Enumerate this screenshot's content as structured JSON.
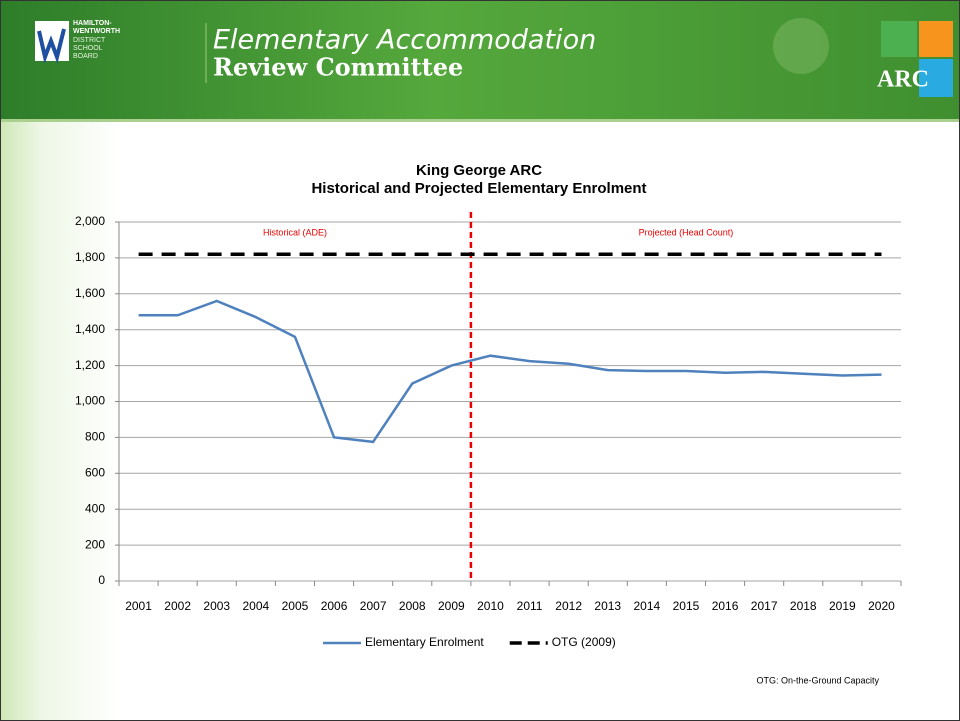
{
  "header": {
    "logo_lines": [
      "HAMILTON-",
      "WENTWORTH",
      "DISTRICT",
      "SCHOOL",
      "BOARD"
    ],
    "title_line1": "Elementary Accommodation",
    "title_line2": "Review Committee",
    "badge": "ARC"
  },
  "chart_data": {
    "type": "line",
    "title": [
      "King George ARC",
      "Historical and Projected Elementary Enrolment"
    ],
    "annotations": [
      "Historical (ADE)",
      "Projected (Head Count)"
    ],
    "categories": [
      "2001",
      "2002",
      "2003",
      "2004",
      "2005",
      "2006",
      "2007",
      "2008",
      "2009",
      "2010",
      "2011",
      "2012",
      "2013",
      "2014",
      "2015",
      "2016",
      "2017",
      "2018",
      "2019",
      "2020"
    ],
    "series": [
      {
        "name": "Elementary Enrolment",
        "color": "#4f81bd",
        "line_style": "solid",
        "values": [
          1480,
          1480,
          1560,
          1470,
          1360,
          800,
          775,
          1100,
          1200,
          1255,
          1225,
          1210,
          1175,
          1170,
          1170,
          1160,
          1165,
          1155,
          1145,
          1150
        ]
      },
      {
        "name": "OTG (2009)",
        "color": "#000000",
        "line_style": "dashed",
        "values": [
          1820,
          1820,
          1820,
          1820,
          1820,
          1820,
          1820,
          1820,
          1820,
          1820,
          1820,
          1820,
          1820,
          1820,
          1820,
          1820,
          1820,
          1820,
          1820,
          1820
        ]
      }
    ],
    "ylim": [
      0,
      2000
    ],
    "yticks": [
      0,
      200,
      400,
      600,
      800,
      {
        "value": 1000,
        "label": "1,000"
      },
      {
        "value": 1200,
        "label": "1,200"
      },
      {
        "value": 1400,
        "label": "1,400"
      },
      {
        "value": 1600,
        "label": "1,600"
      },
      {
        "value": 1800,
        "label": "1,800"
      },
      {
        "value": 2000,
        "label": "2,000"
      }
    ],
    "grid": true,
    "legend": "bottom"
  },
  "footnote": "OTG:  On-the-Ground Capacity"
}
